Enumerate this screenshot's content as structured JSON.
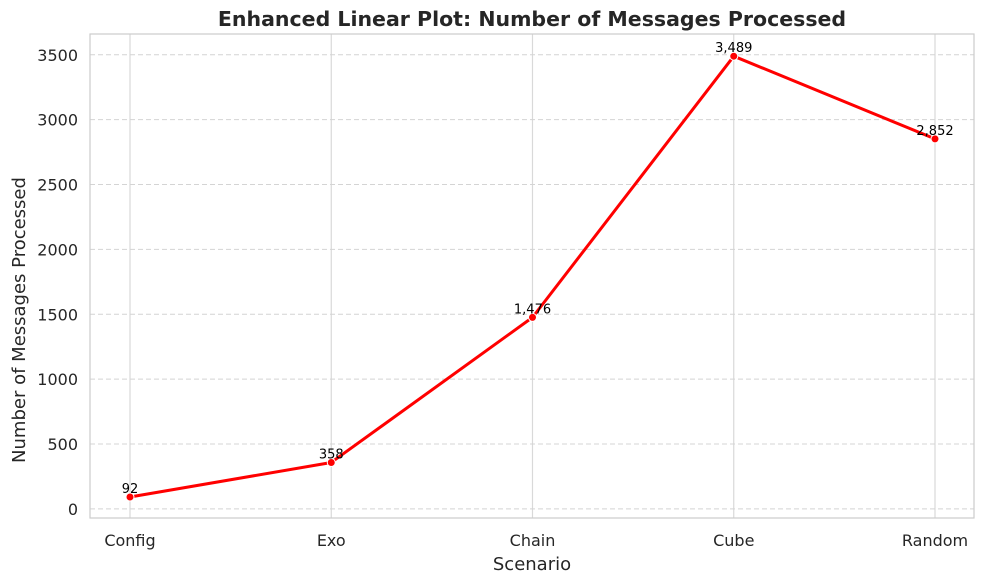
{
  "chart_data": {
    "type": "line",
    "title": "Enhanced Linear Plot: Number of Messages Processed",
    "xlabel": "Scenario",
    "ylabel": "Number of Messages Processed",
    "categories": [
      "Config",
      "Exo",
      "Chain",
      "Cube",
      "Random"
    ],
    "series": [
      {
        "values": [
          92,
          358,
          1476,
          3489,
          2852
        ],
        "data_labels": [
          "92",
          "358",
          "1,476",
          "3,489",
          "2,852"
        ]
      }
    ],
    "ylim": [
      -70,
      3660
    ],
    "yticks": [
      0,
      500,
      1000,
      1500,
      2000,
      2500,
      3000,
      3500
    ],
    "grid": {
      "vertical": "solid",
      "horizontal": "dashed"
    },
    "line_color": "#ff0000",
    "marker_color": "#ff0000"
  }
}
